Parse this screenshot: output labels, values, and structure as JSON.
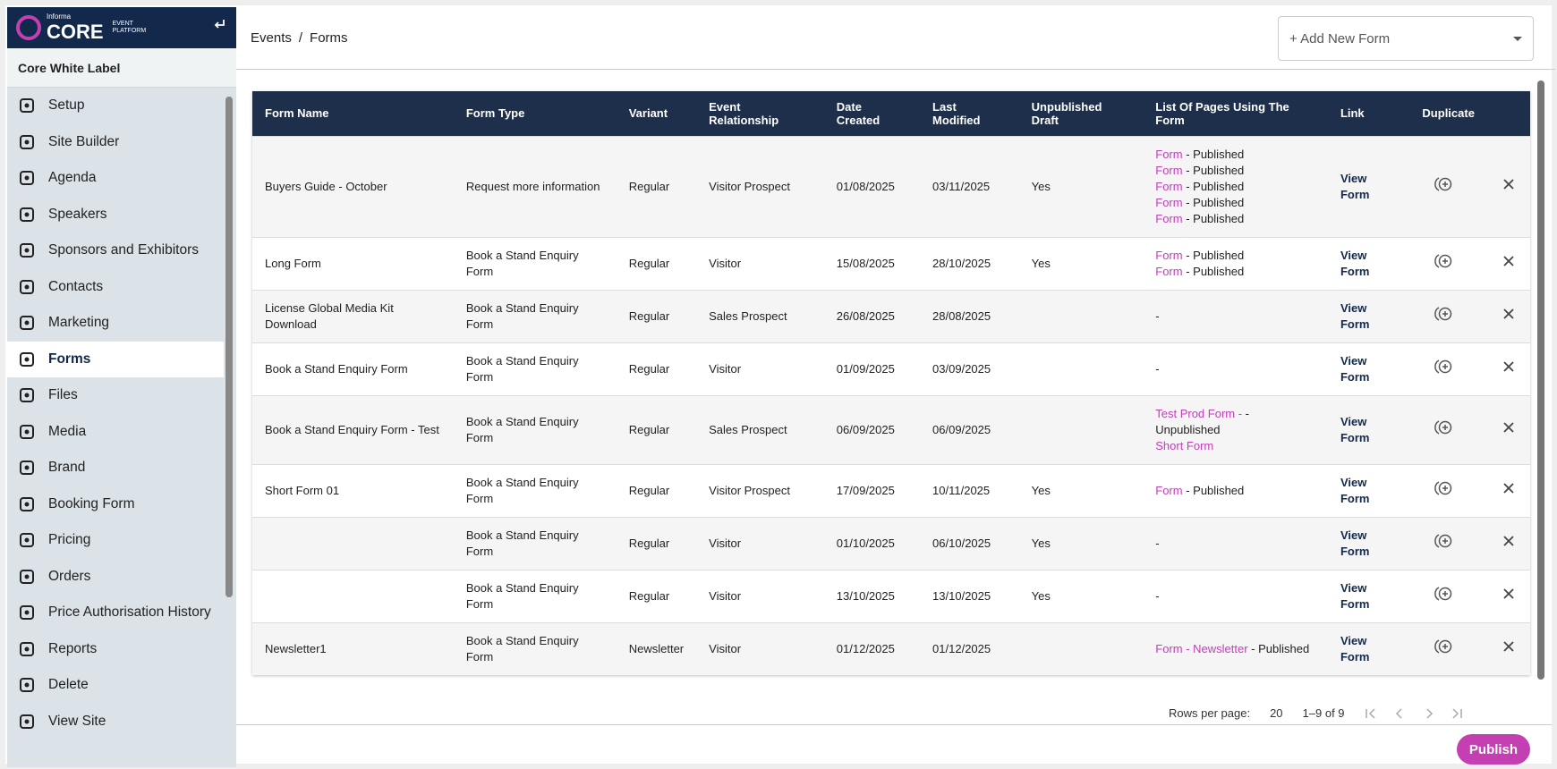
{
  "sidebar": {
    "brand": {
      "small": "Informa",
      "name": "CORE",
      "tag1": "EVENT",
      "tag2": "PLATFORM"
    },
    "workspace": "Core White Label",
    "items": [
      {
        "label": "Setup"
      },
      {
        "label": "Site Builder"
      },
      {
        "label": "Agenda"
      },
      {
        "label": "Speakers"
      },
      {
        "label": "Sponsors and Exhibitors"
      },
      {
        "label": "Contacts"
      },
      {
        "label": "Marketing"
      },
      {
        "label": "Forms",
        "selected": true
      },
      {
        "label": "Files"
      },
      {
        "label": "Media"
      },
      {
        "label": "Brand"
      },
      {
        "label": "Booking Form"
      },
      {
        "label": "Pricing"
      },
      {
        "label": "Orders"
      },
      {
        "label": "Price Authorisation History"
      },
      {
        "label": "Reports"
      },
      {
        "label": "Delete"
      },
      {
        "label": "View Site"
      }
    ]
  },
  "header": {
    "breadcrumb": [
      "Events",
      "Forms"
    ],
    "separator": "/",
    "add_button": "+ Add New Form"
  },
  "table": {
    "columns": [
      "Form Name",
      "Form Type",
      "Variant",
      "Event Relationship",
      "Date Created",
      "Last Modified",
      "Unpublished Draft",
      "List Of Pages Using The Form",
      "Link",
      "Duplicate"
    ],
    "rows": [
      {
        "name": "Buyers Guide - October",
        "type": "Request more information",
        "variant": "Regular",
        "relationship": "Visitor Prospect",
        "created": "01/08/2025",
        "modified": "03/11/2025",
        "draft": "Yes",
        "pages": [
          {
            "link": "Form",
            "status": "- Published"
          },
          {
            "link": "Form",
            "status": "- Published"
          },
          {
            "link": "Form",
            "status": "- Published"
          },
          {
            "link": "Form",
            "status": "- Published"
          },
          {
            "link": "Form",
            "status": "- Published"
          }
        ],
        "link": "View Form"
      },
      {
        "name": "Long Form",
        "type": "Book a Stand Enquiry Form",
        "variant": "Regular",
        "relationship": "Visitor",
        "created": "15/08/2025",
        "modified": "28/10/2025",
        "draft": "Yes",
        "pages": [
          {
            "link": "Form",
            "status": "- Published"
          },
          {
            "link": "Form",
            "status": "- Published"
          }
        ],
        "link": "View Form"
      },
      {
        "name": "License Global Media Kit Download",
        "type": "Book a Stand Enquiry Form",
        "variant": "Regular",
        "relationship": "Sales Prospect",
        "created": "26/08/2025",
        "modified": "28/08/2025",
        "pages": "-",
        "link": "View Form"
      },
      {
        "name": "Book a Stand Enquiry Form",
        "type": "Book a Stand Enquiry Form",
        "variant": "Regular",
        "relationship": "Visitor",
        "created": "01/09/2025",
        "modified": "03/09/2025",
        "pages": "-",
        "link": "View Form"
      },
      {
        "name": "Book a Stand Enquiry Form - Test",
        "type": "Book a Stand Enquiry Form",
        "variant": "Regular",
        "relationship": "Sales Prospect",
        "created": "06/09/2025",
        "modified": "06/09/2025",
        "pages": [
          {
            "link": "Test Prod Form -",
            "status": "- Unpublished"
          },
          {
            "link": "Short Form"
          }
        ],
        "link": "View Form"
      },
      {
        "name": "Short Form 01",
        "type": "Book a Stand Enquiry Form",
        "variant": "Regular",
        "relationship": "Visitor Prospect",
        "created": "17/09/2025",
        "modified": "10/11/2025",
        "draft": "Yes",
        "pages": [
          {
            "link": "Form",
            "status": "- Published"
          }
        ],
        "link": "View Form"
      },
      {
        "type": "Book a Stand Enquiry Form",
        "variant": "Regular",
        "relationship": "Visitor",
        "created": "01/10/2025",
        "modified": "06/10/2025",
        "draft": "Yes",
        "pages": "-",
        "link": "View Form"
      },
      {
        "type": "Book a Stand Enquiry Form",
        "variant": "Regular",
        "relationship": "Visitor",
        "created": "13/10/2025",
        "modified": "13/10/2025",
        "draft": "Yes",
        "pages": "-",
        "link": "View Form"
      },
      {
        "name": "Newsletter1",
        "type": "Book a Stand Enquiry Form",
        "variant": "Newsletter",
        "relationship": "Visitor",
        "created": "01/12/2025",
        "modified": "01/12/2025",
        "pages": [
          {
            "link": "Form - Newsletter",
            "status": "- Published"
          }
        ],
        "link": "View Form"
      }
    ]
  },
  "pagination": {
    "rows_label": "Rows per page:",
    "rows_value": "20",
    "range": "1–9 of 9"
  },
  "publish_button": "Publish"
}
